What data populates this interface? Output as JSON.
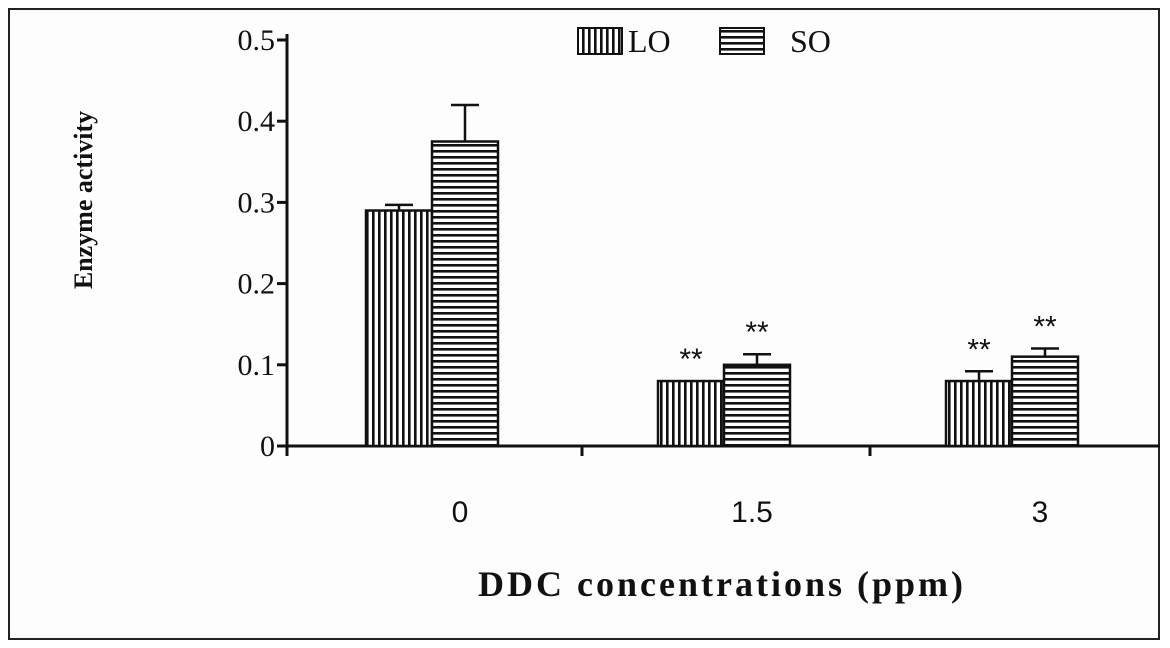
{
  "chart_data": {
    "type": "bar",
    "title": "",
    "xlabel": "DDC concentrations (ppm)",
    "ylabel": "Enzyme activity",
    "categories": [
      "0",
      "1.5",
      "3"
    ],
    "y_ticks": [
      "0",
      "0.1",
      "0.2",
      "0.3",
      "0.4",
      "0.5"
    ],
    "ylim": [
      0,
      0.5
    ],
    "grid": false,
    "legend_position": "top-center",
    "series": [
      {
        "name": "LO",
        "pattern": "vertical-stripes",
        "values": [
          0.29,
          0.08,
          0.08
        ],
        "errors": [
          0.007,
          0.0,
          0.012
        ],
        "annotations": [
          "",
          "**",
          "**"
        ]
      },
      {
        "name": "SO",
        "pattern": "horizontal-stripes",
        "values": [
          0.375,
          0.1,
          0.11
        ],
        "errors": [
          0.045,
          0.013,
          0.01
        ],
        "annotations": [
          "",
          "**",
          "**"
        ]
      }
    ],
    "colors": {
      "ink": "#111111",
      "background": "#ffffff"
    }
  }
}
